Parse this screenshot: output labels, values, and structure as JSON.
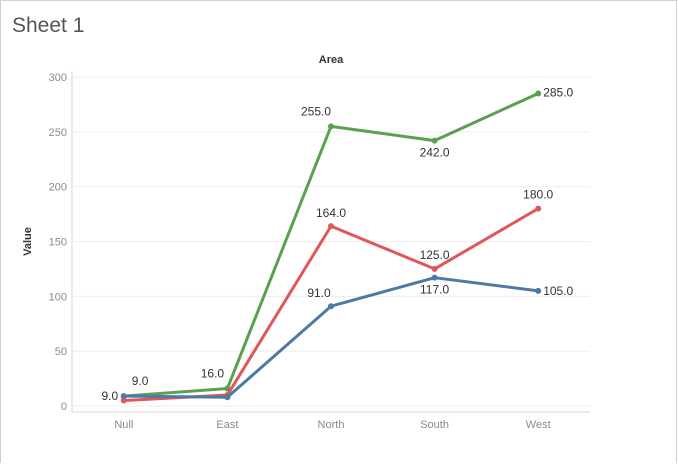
{
  "sheet": {
    "title": "Sheet 1"
  },
  "chart_data": {
    "type": "line",
    "title": "Area",
    "xlabel": "",
    "ylabel": "Value",
    "categories": [
      "Null",
      "East",
      "North",
      "South",
      "West"
    ],
    "y_ticks": [
      "0",
      "50",
      "100",
      "150",
      "200",
      "250",
      "300"
    ],
    "ylim": [
      0,
      300
    ],
    "grid": true,
    "series": [
      {
        "color": "#59a14f",
        "values": [
          9,
          16,
          255,
          242,
          285
        ],
        "labels": [
          "9.0",
          "16.0",
          "255.0",
          "242.0",
          "285.0"
        ]
      },
      {
        "color": "#e15759",
        "values": [
          5,
          10,
          164,
          125,
          180
        ],
        "labels": [
          "",
          "",
          "164.0",
          "125.0",
          "180.0"
        ]
      },
      {
        "color": "#4e79a7",
        "values": [
          9,
          8,
          91,
          117,
          105
        ],
        "labels": [
          "9.0",
          "",
          "91.0",
          "117.0",
          "105.0"
        ]
      }
    ]
  }
}
